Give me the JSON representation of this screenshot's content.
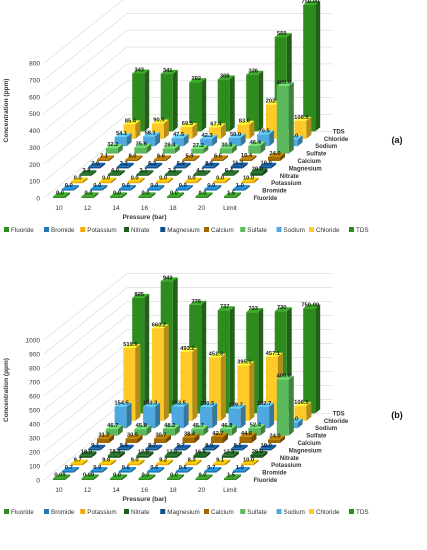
{
  "chart_data": [
    {
      "type": "bar",
      "panel_label": "(a)",
      "ylabel": "Concentration (ppm)",
      "xlabel": "Pressure (bar)",
      "categories": [
        "10",
        "12",
        "14",
        "16",
        "18",
        "20",
        "Limit"
      ],
      "yticks": [
        "0",
        "100",
        "200",
        "300",
        "400",
        "500",
        "600",
        "700",
        "800"
      ],
      "ylim": [
        0,
        800
      ],
      "series": [
        {
          "name": "Fluoride",
          "color": "#2e8b1e",
          "values": [
            0.0,
            0.0,
            0.0,
            0.0,
            0.0,
            0.0,
            1.5
          ],
          "labels": [
            "0.0",
            "0.0",
            "0.0",
            "0.0",
            "0.0",
            "0.0",
            "1.5"
          ]
        },
        {
          "name": "Bromide",
          "color": "#1f77b4",
          "values": [
            0.0,
            0.0,
            0.0,
            0.0,
            0.0,
            0.0,
            1.0
          ],
          "labels": [
            "0.0",
            "0.0",
            "0.0",
            "0.0",
            "0.0",
            "0.0",
            "1.0"
          ]
        },
        {
          "name": "Potassium",
          "color": "#f2a900",
          "values": [
            0.0,
            0.0,
            0.0,
            0.0,
            0.0,
            0.0,
            10.0
          ],
          "labels": [
            "0.0",
            "0.0",
            "0.0",
            "0.0",
            "0.0",
            "0.0",
            "10.0"
          ]
        },
        {
          "name": "Nitrate",
          "color": "#1b5e20",
          "values": [
            3.8,
            4.0,
            3.1,
            3.3,
            4.1,
            6.4,
            20.0
          ],
          "labels": [
            "3.8",
            "4.0",
            "3.1",
            "3.3",
            "4.1",
            "6.4",
            "20.0"
          ]
        },
        {
          "name": "Magnesium",
          "color": "#0d4f8b",
          "values": [
            7.0,
            7.2,
            6.3,
            6.0,
            8.5,
            11.2,
            10.0
          ],
          "labels": [
            "7.0",
            "7.2",
            "6.3",
            "6.0",
            "8.5",
            "11.2",
            "10.0"
          ]
        },
        {
          "name": "Calcium",
          "color": "#a06a00",
          "values": [
            7.1,
            8.0,
            6.6,
            5.9,
            6.5,
            10.4,
            24.0
          ],
          "labels": [
            "7.1",
            "8.0",
            "6.6",
            "5.9",
            "6.5",
            "10.4",
            "24.0"
          ]
        },
        {
          "name": "Sulfate",
          "color": "#5cb85c",
          "values": [
            32.2,
            35.6,
            29.4,
            27.2,
            30.8,
            46.4,
            400.0
          ],
          "labels": [
            "32.2",
            "35.6",
            "29.4",
            "27.2",
            "30.8",
            "46.4",
            "400.0"
          ]
        },
        {
          "name": "Sodium",
          "color": "#4fa8e0",
          "values": [
            54.1,
            58.1,
            47.5,
            42.3,
            50.0,
            70.5,
            40.0
          ],
          "labels": [
            "54.1",
            "58.1",
            "47.5",
            "42.3",
            "50.0",
            "70.5",
            "40.0"
          ]
        },
        {
          "name": "Chloride",
          "color": "#ffc928",
          "values": [
            85.4,
            90.5,
            69.5,
            67.4,
            83.6,
            202.1,
            106.5
          ],
          "labels": [
            "85.4",
            "90.5",
            "69.5",
            "67.4",
            "83.6",
            "202.1",
            "106.5"
          ]
        },
        {
          "name": "TDS",
          "color": "#2e8b1e",
          "values": [
            343,
            341,
            292,
            308,
            336,
            559,
            750.0
          ],
          "labels": [
            "343",
            "341",
            "292",
            "308",
            "336",
            "559",
            "750.00"
          ]
        }
      ]
    },
    {
      "type": "bar",
      "panel_label": "(b)",
      "ylabel": "Concentration (ppm)",
      "xlabel": "Pressure (bar)",
      "categories": [
        "10",
        "12",
        "14",
        "16",
        "18",
        "20",
        "Limit"
      ],
      "yticks": [
        "0",
        "100",
        "200",
        "300",
        "400",
        "500",
        "600",
        "700",
        "800",
        "900",
        "1000"
      ],
      "ylim": [
        0,
        1000
      ],
      "series": [
        {
          "name": "Fluoride",
          "color": "#2e8b1e",
          "values": [
            0.09,
            0.09,
            0.0,
            0.0,
            0.0,
            0.0,
            1.5
          ],
          "labels": [
            "0.09",
            "0.09",
            "0.0",
            "0.0",
            "0.0",
            "0.0",
            "1.5"
          ]
        },
        {
          "name": "Bromide",
          "color": "#1f77b4",
          "values": [
            0.7,
            0.9,
            0.6,
            0.6,
            0.6,
            0.7,
            1.0
          ],
          "labels": [
            "0.7",
            "0.9",
            "0.6",
            "0.6",
            "0.6",
            "0.7",
            "1.0"
          ]
        },
        {
          "name": "Potassium",
          "color": "#f2a900",
          "values": [
            9.7,
            9.8,
            9.0,
            9.2,
            8.3,
            9.1,
            10.0
          ],
          "labels": [
            "9.7",
            "9.8",
            "9.0",
            "9.2",
            "8.3",
            "9.1",
            "10.0"
          ]
        },
        {
          "name": "Nitrate",
          "color": "#1b5e20",
          "values": [
            18.0,
            18.3,
            17.8,
            17.0,
            16.6,
            17.9,
            20.0
          ],
          "labels": [
            "18.0",
            "18.3",
            "17.8",
            "17.0",
            "16.6",
            "17.9",
            "20.0"
          ]
        },
        {
          "name": "Magnesium",
          "color": "#0d4f8b",
          "values": [
            9.1,
            9.8,
            8.7,
            9.7,
            8.9,
            8.5,
            10.0
          ],
          "labels": [
            "9.1",
            "9.8",
            "8.7",
            "9.7",
            "8.9",
            "8.5",
            "10.0"
          ]
        },
        {
          "name": "Calcium",
          "color": "#a06a00",
          "values": [
            31.2,
            30.5,
            30.7,
            38.4,
            42.7,
            44.6,
            24.0
          ],
          "labels": [
            "31.2",
            "30.5",
            "30.7",
            "38.4",
            "42.7",
            "44.6",
            "24.0"
          ]
        },
        {
          "name": "Sulfate",
          "color": "#5cb85c",
          "values": [
            46.7,
            45.8,
            48.2,
            45.7,
            46.8,
            52.4,
            400.0
          ],
          "labels": [
            "46.7",
            "45.8",
            "48.2",
            "45.7",
            "46.8",
            "52.4",
            "400.0"
          ]
        },
        {
          "name": "Sodium",
          "color": "#4fa8e0",
          "values": [
            154.5,
            153.3,
            153.5,
            150.5,
            139.7,
            152.7,
            40.0
          ],
          "labels": [
            "154.5",
            "153.3",
            "153.5",
            "150.5",
            "139.7",
            "152.7",
            "40.0"
          ]
        },
        {
          "name": "Chloride",
          "color": "#ffc928",
          "values": [
            519.6,
            660.2,
            493.2,
            451.3,
            395.1,
            457.1,
            106.5
          ],
          "labels": [
            "519.6",
            "660.2",
            "493.2",
            "451.3",
            "395.1",
            "457.1",
            "106.5"
          ]
        },
        {
          "name": "TDS",
          "color": "#2e8b1e",
          "values": [
            825,
            943,
            776,
            737,
            723,
            730,
            750.0
          ],
          "labels": [
            "825",
            "943",
            "776",
            "737",
            "723",
            "730",
            "750.00"
          ]
        }
      ]
    }
  ]
}
